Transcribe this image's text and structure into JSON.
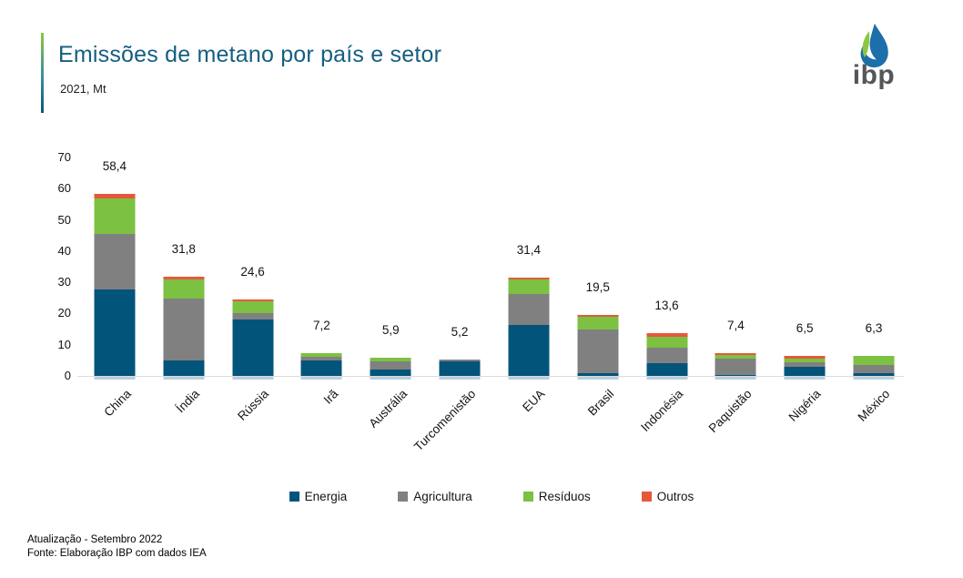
{
  "header": {
    "title": "Emissões de metano por país e setor",
    "subtitle": "2021, Mt",
    "accent_top_color": "#8dc63f",
    "accent_bottom_color": "#05587c",
    "title_color": "#155e80"
  },
  "logo": {
    "text": "ibp",
    "drop_blue": "#1c6fa8",
    "leaf_green": "#8dc63f",
    "text_color": "#54565a"
  },
  "chart_data": {
    "type": "bar",
    "variant": "stacked",
    "title": "Emissões de metano por país e setor",
    "subtitle": "2021, Mt",
    "xlabel": "",
    "ylabel": "",
    "ylim": [
      0,
      70
    ],
    "yticks": [
      0,
      10,
      20,
      30,
      40,
      50,
      60,
      70
    ],
    "grid": false,
    "legend_position": "bottom",
    "categories": [
      "China",
      "Índia",
      "Rússia",
      "Irã",
      "Austrália",
      "Turcomenistão",
      "EUA",
      "Brasil",
      "Indonésia",
      "Paquistão",
      "Nigéria",
      "México"
    ],
    "total_labels": [
      "58,4",
      "31,8",
      "24,6",
      "7,2",
      "5,9",
      "5,2",
      "31,4",
      "19,5",
      "13,6",
      "7,4",
      "6,5",
      "6,3"
    ],
    "totals": [
      58.4,
      31.8,
      24.6,
      7.2,
      5.9,
      5.2,
      31.4,
      19.5,
      13.6,
      7.4,
      6.5,
      6.3
    ],
    "series": [
      {
        "name": "Energia",
        "color": "#03547a",
        "values": [
          27.8,
          5.0,
          18.0,
          5.0,
          2.0,
          4.7,
          16.3,
          1.0,
          4.0,
          0.3,
          2.8,
          1.0
        ]
      },
      {
        "name": "Agricultura",
        "color": "#808080",
        "values": [
          17.8,
          19.8,
          2.0,
          1.1,
          2.7,
          0.5,
          9.9,
          13.8,
          5.0,
          5.2,
          1.5,
          2.4
        ]
      },
      {
        "name": "Resíduos",
        "color": "#7cc142",
        "values": [
          11.4,
          6.1,
          4.0,
          1.1,
          1.2,
          0.0,
          4.6,
          4.2,
          3.6,
          1.2,
          1.3,
          2.9
        ]
      },
      {
        "name": "Outros",
        "color": "#e4593c",
        "values": [
          1.4,
          0.9,
          0.6,
          0.0,
          0.0,
          0.0,
          0.6,
          0.5,
          1.0,
          0.7,
          0.9,
          0.0
        ]
      }
    ]
  },
  "footer": {
    "line1": "Atualização - Setembro 2022",
    "line2": "Fonte: Elaboração IBP com dados IEA"
  }
}
